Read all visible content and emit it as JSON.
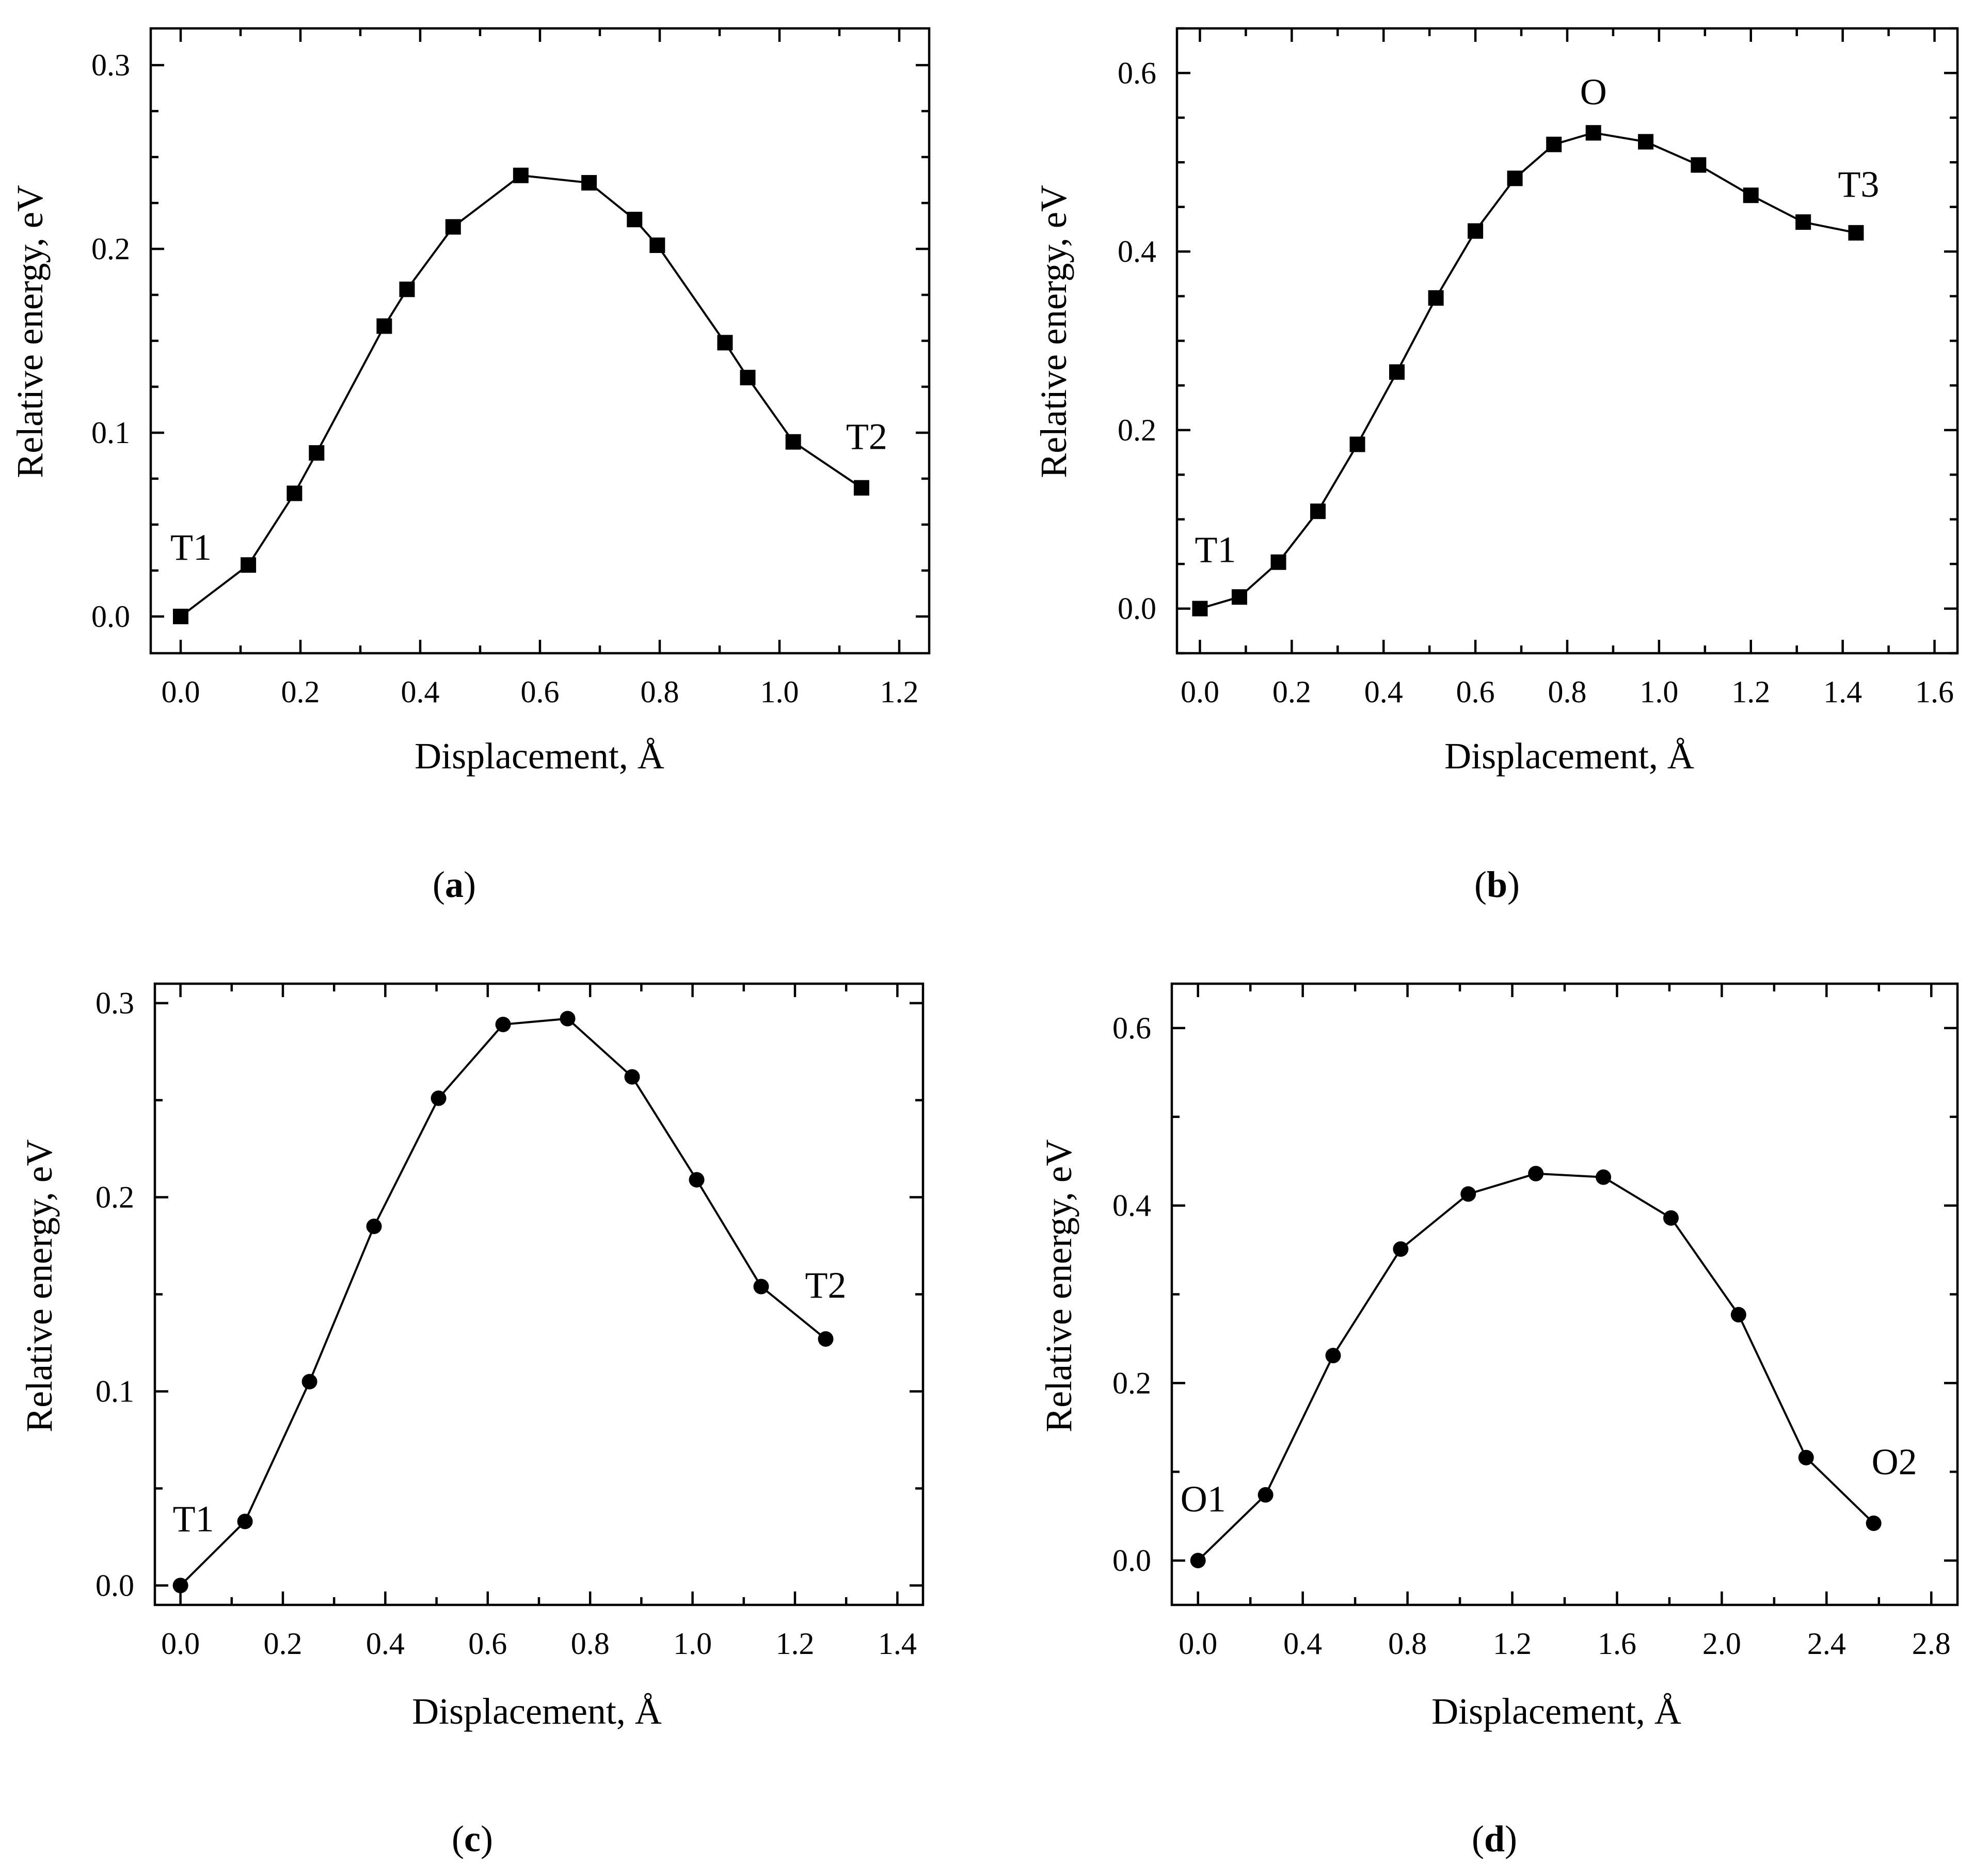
{
  "figure": {
    "panels": [
      {
        "label_open": "(",
        "label_letter": "a",
        "label_close": ")"
      },
      {
        "label_open": "(",
        "label_letter": "b",
        "label_close": ")"
      },
      {
        "label_open": "(",
        "label_letter": "c",
        "label_close": ")"
      },
      {
        "label_open": "(",
        "label_letter": "d",
        "label_close": ")"
      }
    ]
  },
  "chart_data": [
    {
      "id": "a",
      "type": "line",
      "marker": "square",
      "xlabel": "Displacement, Å",
      "ylabel": "Relative energy, eV",
      "xlim": [
        -0.05,
        1.25
      ],
      "ylim": [
        -0.02,
        0.32
      ],
      "xticks": [
        0.0,
        0.2,
        0.4,
        0.6,
        0.8,
        1.0,
        1.2
      ],
      "xtick_labels": [
        "0.0",
        "0.2",
        "0.4",
        "0.6",
        "0.8",
        "1.0",
        "1.2"
      ],
      "xminor": 0.1,
      "yticks": [
        0.0,
        0.1,
        0.2,
        0.3
      ],
      "ytick_labels": [
        "0.0",
        "0.1",
        "0.2",
        "0.3"
      ],
      "yminor": 0.025,
      "x": [
        0.0,
        0.113,
        0.19,
        0.227,
        0.34,
        0.378,
        0.455,
        0.568,
        0.682,
        0.758,
        0.796,
        0.909,
        0.947,
        1.023,
        1.137
      ],
      "y": [
        0.0,
        0.028,
        0.067,
        0.089,
        0.158,
        0.178,
        0.212,
        0.24,
        0.236,
        0.216,
        0.202,
        0.149,
        0.13,
        0.095,
        0.07
      ],
      "annotations": [
        {
          "text": "T1",
          "x": 0.0,
          "y": 0.0,
          "anchor": "above"
        },
        {
          "text": "T2",
          "x": 1.137,
          "y": 0.07,
          "anchor": "above"
        }
      ]
    },
    {
      "id": "b",
      "type": "line",
      "marker": "square",
      "xlabel": "Displacement, Å",
      "ylabel": "Relative energy, eV",
      "xlim": [
        -0.05,
        1.65
      ],
      "ylim": [
        -0.05,
        0.65
      ],
      "xticks": [
        0.0,
        0.2,
        0.4,
        0.6,
        0.8,
        1.0,
        1.2,
        1.4,
        1.6
      ],
      "xtick_labels": [
        "0.0",
        "0.2",
        "0.4",
        "0.6",
        "0.8",
        "1.0",
        "1.2",
        "1.4",
        "1.6"
      ],
      "xminor": 0.1,
      "yticks": [
        0.0,
        0.2,
        0.4,
        0.6
      ],
      "ytick_labels": [
        "0.0",
        "0.2",
        "0.4",
        "0.6"
      ],
      "yminor": 0.05,
      "x": [
        0.0,
        0.086,
        0.171,
        0.257,
        0.343,
        0.429,
        0.514,
        0.6,
        0.686,
        0.771,
        0.857,
        0.971,
        1.086,
        1.2,
        1.314,
        1.429
      ],
      "y": [
        0.0,
        0.013,
        0.052,
        0.109,
        0.184,
        0.265,
        0.348,
        0.423,
        0.482,
        0.52,
        0.533,
        0.523,
        0.497,
        0.463,
        0.433,
        0.421
      ],
      "annotations": [
        {
          "text": "T1",
          "x": 0.0,
          "y": 0.0,
          "anchor": "above"
        },
        {
          "text": "O",
          "x": 0.857,
          "y": 0.533,
          "anchor": "above"
        },
        {
          "text": "T3",
          "x": 1.429,
          "y": 0.421,
          "anchor": "above"
        }
      ]
    },
    {
      "id": "c",
      "type": "line",
      "marker": "circle",
      "xlabel": "Displacement, Å",
      "ylabel": "Relative energy, eV",
      "xlim": [
        -0.05,
        1.45
      ],
      "ylim": [
        -0.01,
        0.31
      ],
      "xticks": [
        0.0,
        0.2,
        0.4,
        0.6,
        0.8,
        1.0,
        1.2,
        1.4
      ],
      "xtick_labels": [
        "0.0",
        "0.2",
        "0.4",
        "0.6",
        "0.8",
        "1.0",
        "1.2",
        "1.4"
      ],
      "xminor": 0.1,
      "yticks": [
        0.0,
        0.1,
        0.2,
        0.3
      ],
      "ytick_labels": [
        "0.0",
        "0.1",
        "0.2",
        "0.3"
      ],
      "yminor": 0.05,
      "x": [
        0.0,
        0.126,
        0.252,
        0.378,
        0.504,
        0.63,
        0.756,
        0.882,
        1.008,
        1.134,
        1.26
      ],
      "y": [
        0.0,
        0.033,
        0.105,
        0.185,
        0.251,
        0.289,
        0.292,
        0.262,
        0.209,
        0.154,
        0.127
      ],
      "annotations": [
        {
          "text": "T1",
          "x": 0.0,
          "y": 0.0,
          "anchor": "above"
        },
        {
          "text": "T2",
          "x": 1.26,
          "y": 0.127,
          "anchor": "above"
        }
      ]
    },
    {
      "id": "d",
      "type": "line",
      "marker": "circle",
      "xlabel": "Displacement, Å",
      "ylabel": "Relative energy, eV",
      "xlim": [
        -0.1,
        2.9
      ],
      "ylim": [
        -0.05,
        0.65
      ],
      "xticks": [
        0.0,
        0.4,
        0.8,
        1.2,
        1.6,
        2.0,
        2.4,
        2.8
      ],
      "xtick_labels": [
        "0.0",
        "0.4",
        "0.8",
        "1.2",
        "1.6",
        "2.0",
        "2.4",
        "2.8"
      ],
      "xminor": 0.2,
      "yticks": [
        0.0,
        0.2,
        0.4,
        0.6
      ],
      "ytick_labels": [
        "0.0",
        "0.2",
        "0.4",
        "0.6"
      ],
      "yminor": 0.1,
      "x": [
        0.0,
        0.258,
        0.516,
        0.774,
        1.032,
        1.29,
        1.548,
        1.806,
        2.064,
        2.322,
        2.58
      ],
      "y": [
        0.0,
        0.074,
        0.231,
        0.351,
        0.413,
        0.436,
        0.432,
        0.386,
        0.277,
        0.116,
        0.042
      ],
      "annotations": [
        {
          "text": "O1",
          "x": 0.0,
          "y": 0.0,
          "anchor": "above"
        },
        {
          "text": "O2",
          "x": 2.58,
          "y": 0.042,
          "anchor": "above"
        }
      ]
    }
  ]
}
